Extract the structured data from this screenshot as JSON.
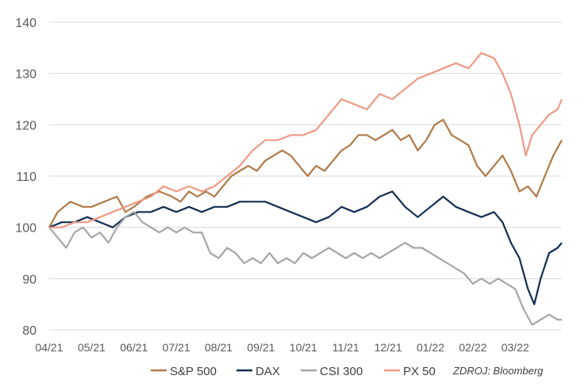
{
  "chart_data": {
    "type": "line",
    "title": "",
    "xlabel": "",
    "ylabel": "",
    "ylim": [
      80,
      140
    ],
    "yticks": [
      80,
      90,
      100,
      110,
      120,
      130,
      140
    ],
    "xlim": [
      0,
      12.1
    ],
    "xtick_labels": [
      "04/21",
      "05/21",
      "06/21",
      "07/21",
      "08/21",
      "09/21",
      "10/21",
      "11/21",
      "12/21",
      "01/22",
      "02/22",
      "03/22"
    ],
    "grid": "horizontal",
    "legend": "bottom",
    "source_note": "ZDROJ: Bloomberg",
    "series": [
      {
        "name": "S&P 500",
        "color": "#B07A48",
        "points": [
          [
            0,
            100
          ],
          [
            0.2,
            103
          ],
          [
            0.5,
            105
          ],
          [
            0.8,
            104
          ],
          [
            1,
            104
          ],
          [
            1.3,
            105
          ],
          [
            1.6,
            106
          ],
          [
            1.8,
            103
          ],
          [
            2,
            104
          ],
          [
            2.3,
            106
          ],
          [
            2.6,
            107
          ],
          [
            2.9,
            106
          ],
          [
            3.1,
            105
          ],
          [
            3.3,
            107
          ],
          [
            3.5,
            106
          ],
          [
            3.7,
            107
          ],
          [
            3.9,
            106
          ],
          [
            4.1,
            108
          ],
          [
            4.3,
            110
          ],
          [
            4.5,
            111
          ],
          [
            4.7,
            112
          ],
          [
            4.9,
            111
          ],
          [
            5.1,
            113
          ],
          [
            5.3,
            114
          ],
          [
            5.5,
            115
          ],
          [
            5.7,
            114
          ],
          [
            5.9,
            112
          ],
          [
            6.1,
            110
          ],
          [
            6.3,
            112
          ],
          [
            6.5,
            111
          ],
          [
            6.7,
            113
          ],
          [
            6.9,
            115
          ],
          [
            7.1,
            116
          ],
          [
            7.3,
            118
          ],
          [
            7.5,
            118
          ],
          [
            7.7,
            117
          ],
          [
            7.9,
            118
          ],
          [
            8.1,
            119
          ],
          [
            8.3,
            117
          ],
          [
            8.5,
            118
          ],
          [
            8.7,
            115
          ],
          [
            8.9,
            117
          ],
          [
            9.1,
            120
          ],
          [
            9.3,
            121
          ],
          [
            9.5,
            118
          ],
          [
            9.7,
            117
          ],
          [
            9.9,
            116
          ],
          [
            10.1,
            112
          ],
          [
            10.3,
            110
          ],
          [
            10.5,
            112
          ],
          [
            10.7,
            114
          ],
          [
            10.9,
            111
          ],
          [
            11.1,
            107
          ],
          [
            11.3,
            108
          ],
          [
            11.5,
            106
          ],
          [
            11.7,
            110
          ],
          [
            11.9,
            114
          ],
          [
            12.1,
            117
          ]
        ]
      },
      {
        "name": "DAX",
        "color": "#142E52",
        "points": [
          [
            0,
            100
          ],
          [
            0.3,
            101
          ],
          [
            0.6,
            101
          ],
          [
            0.9,
            102
          ],
          [
            1.2,
            101
          ],
          [
            1.5,
            100
          ],
          [
            1.8,
            102
          ],
          [
            2.1,
            103
          ],
          [
            2.4,
            103
          ],
          [
            2.7,
            104
          ],
          [
            3,
            103
          ],
          [
            3.3,
            104
          ],
          [
            3.6,
            103
          ],
          [
            3.9,
            104
          ],
          [
            4.2,
            104
          ],
          [
            4.5,
            105
          ],
          [
            4.8,
            105
          ],
          [
            5.1,
            105
          ],
          [
            5.4,
            104
          ],
          [
            5.7,
            103
          ],
          [
            6,
            102
          ],
          [
            6.3,
            101
          ],
          [
            6.6,
            102
          ],
          [
            6.9,
            104
          ],
          [
            7.2,
            103
          ],
          [
            7.5,
            104
          ],
          [
            7.8,
            106
          ],
          [
            8.1,
            107
          ],
          [
            8.4,
            104
          ],
          [
            8.7,
            102
          ],
          [
            9,
            104
          ],
          [
            9.3,
            106
          ],
          [
            9.6,
            104
          ],
          [
            9.9,
            103
          ],
          [
            10.2,
            102
          ],
          [
            10.5,
            103
          ],
          [
            10.7,
            101
          ],
          [
            10.9,
            97
          ],
          [
            11.1,
            94
          ],
          [
            11.3,
            88
          ],
          [
            11.45,
            85
          ],
          [
            11.6,
            90
          ],
          [
            11.8,
            95
          ],
          [
            12,
            96
          ],
          [
            12.1,
            97
          ]
        ]
      },
      {
        "name": "CSI 300",
        "color": "#A6A6A6",
        "points": [
          [
            0,
            100
          ],
          [
            0.2,
            98
          ],
          [
            0.4,
            96
          ],
          [
            0.6,
            99
          ],
          [
            0.8,
            100
          ],
          [
            1,
            98
          ],
          [
            1.2,
            99
          ],
          [
            1.4,
            97
          ],
          [
            1.6,
            100
          ],
          [
            1.8,
            102
          ],
          [
            2,
            103
          ],
          [
            2.2,
            101
          ],
          [
            2.4,
            100
          ],
          [
            2.6,
            99
          ],
          [
            2.8,
            100
          ],
          [
            3,
            99
          ],
          [
            3.2,
            100
          ],
          [
            3.4,
            99
          ],
          [
            3.6,
            99
          ],
          [
            3.8,
            95
          ],
          [
            4,
            94
          ],
          [
            4.2,
            96
          ],
          [
            4.4,
            95
          ],
          [
            4.6,
            93
          ],
          [
            4.8,
            94
          ],
          [
            5,
            93
          ],
          [
            5.2,
            95
          ],
          [
            5.4,
            93
          ],
          [
            5.6,
            94
          ],
          [
            5.8,
            93
          ],
          [
            6,
            95
          ],
          [
            6.2,
            94
          ],
          [
            6.4,
            95
          ],
          [
            6.6,
            96
          ],
          [
            6.8,
            95
          ],
          [
            7,
            94
          ],
          [
            7.2,
            95
          ],
          [
            7.4,
            94
          ],
          [
            7.6,
            95
          ],
          [
            7.8,
            94
          ],
          [
            8,
            95
          ],
          [
            8.2,
            96
          ],
          [
            8.4,
            97
          ],
          [
            8.6,
            96
          ],
          [
            8.8,
            96
          ],
          [
            9,
            95
          ],
          [
            9.2,
            94
          ],
          [
            9.4,
            93
          ],
          [
            9.6,
            92
          ],
          [
            9.8,
            91
          ],
          [
            10,
            89
          ],
          [
            10.2,
            90
          ],
          [
            10.4,
            89
          ],
          [
            10.6,
            90
          ],
          [
            10.8,
            89
          ],
          [
            11,
            88
          ],
          [
            11.2,
            84
          ],
          [
            11.4,
            81
          ],
          [
            11.6,
            82
          ],
          [
            11.8,
            83
          ],
          [
            12,
            82
          ],
          [
            12.1,
            82
          ]
        ]
      },
      {
        "name": "PX 50",
        "color": "#EE9A85",
        "points": [
          [
            0,
            100
          ],
          [
            0.3,
            100
          ],
          [
            0.6,
            101
          ],
          [
            0.9,
            101
          ],
          [
            1.2,
            102
          ],
          [
            1.5,
            103
          ],
          [
            1.8,
            104
          ],
          [
            2.1,
            105
          ],
          [
            2.4,
            106
          ],
          [
            2.7,
            108
          ],
          [
            3,
            107
          ],
          [
            3.3,
            108
          ],
          [
            3.6,
            107
          ],
          [
            3.9,
            108
          ],
          [
            4.2,
            110
          ],
          [
            4.5,
            112
          ],
          [
            4.8,
            115
          ],
          [
            5.1,
            117
          ],
          [
            5.4,
            117
          ],
          [
            5.7,
            118
          ],
          [
            6,
            118
          ],
          [
            6.3,
            119
          ],
          [
            6.6,
            122
          ],
          [
            6.9,
            125
          ],
          [
            7.2,
            124
          ],
          [
            7.5,
            123
          ],
          [
            7.8,
            126
          ],
          [
            8.1,
            125
          ],
          [
            8.4,
            127
          ],
          [
            8.7,
            129
          ],
          [
            9,
            130
          ],
          [
            9.3,
            131
          ],
          [
            9.6,
            132
          ],
          [
            9.9,
            131
          ],
          [
            10.2,
            134
          ],
          [
            10.5,
            133
          ],
          [
            10.7,
            130
          ],
          [
            10.9,
            126
          ],
          [
            11.1,
            120
          ],
          [
            11.25,
            114
          ],
          [
            11.4,
            118
          ],
          [
            11.6,
            120
          ],
          [
            11.8,
            122
          ],
          [
            12,
            123
          ],
          [
            12.1,
            125
          ]
        ]
      }
    ]
  }
}
